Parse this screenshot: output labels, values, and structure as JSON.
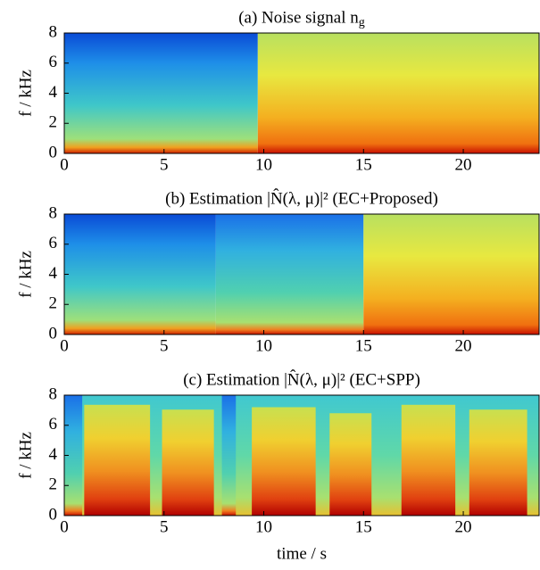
{
  "chart_data": [
    {
      "type": "spectrogram",
      "title": "(a) Noise signal n",
      "title_subscript": "g",
      "ylabel": "f / kHz",
      "xlim": [
        0,
        23.8
      ],
      "xticks": [
        0,
        5,
        10,
        15,
        20
      ],
      "ylim": [
        0,
        8
      ],
      "yticks": [
        0,
        2,
        4,
        6,
        8
      ]
    },
    {
      "type": "spectrogram",
      "title": "(b) Estimation |N̂(λ, μ)|² (EC+Proposed)",
      "ylabel": "f / kHz",
      "xlim": [
        0,
        23.8
      ],
      "xticks": [
        0,
        5,
        10,
        15,
        20
      ],
      "ylim": [
        0,
        8
      ],
      "yticks": [
        0,
        2,
        4,
        6,
        8
      ]
    },
    {
      "type": "spectrogram",
      "title": "(c) Estimation |N̂(λ, μ)|² (EC+SPP)",
      "ylabel": "f / kHz",
      "xlabel": "time / s",
      "xlim": [
        0,
        23.8
      ],
      "xticks": [
        0,
        5,
        10,
        15,
        20
      ],
      "ylim": [
        0,
        8
      ],
      "yticks": [
        0,
        2,
        4,
        6,
        8
      ]
    }
  ]
}
